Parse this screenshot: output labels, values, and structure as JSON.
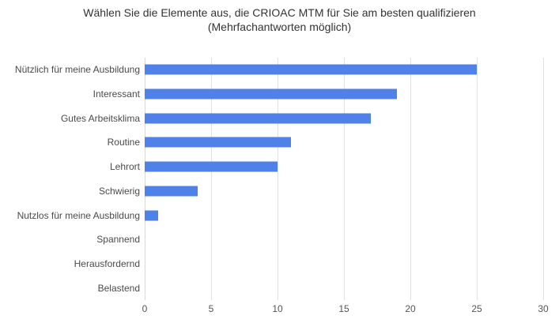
{
  "title": {
    "line1": "Wählen Sie die Elemente aus, die CRIOAC MTM für Sie am besten qualifizieren",
    "line2": "(Mehrfachantworten möglich)"
  },
  "chart_data": {
    "type": "bar",
    "orientation": "horizontal",
    "title": "Wählen Sie die Elemente aus, die CRIOAC MTM für Sie am besten qualifizieren (Mehrfachantworten möglich)",
    "categories": [
      "Nützlich für meine Ausbildung",
      "Interessant",
      "Gutes Arbeitsklima",
      "Routine",
      "Lehrort",
      "Schwierig",
      "Nutzlos für meine Ausbildung",
      "Spannend",
      "Herausfordernd",
      "Belastend"
    ],
    "values": [
      25,
      19,
      17,
      11,
      10,
      4,
      1,
      0,
      0,
      0
    ],
    "xlabel": "",
    "ylabel": "",
    "xlim": [
      0,
      30
    ],
    "xticks": [
      0,
      5,
      10,
      15,
      20,
      25,
      30
    ],
    "grid": true,
    "legend": false,
    "colors": {
      "bar": "#4f81e8",
      "gridline": "#e2e2e2",
      "baseline": "#d9d9d9",
      "title_text": "#333333",
      "category_text": "#4a4a4a",
      "tick_text": "#555555",
      "background": "#ffffff"
    }
  }
}
